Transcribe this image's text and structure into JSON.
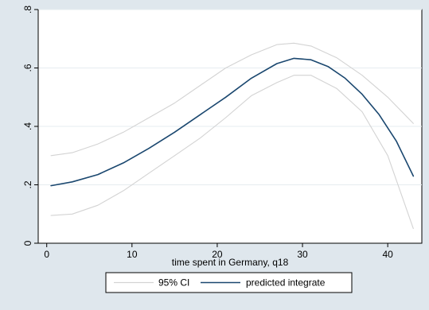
{
  "chart_data": {
    "type": "line",
    "title": "",
    "xlabel": "time spent in Germany, q18",
    "ylabel": "",
    "xlim": [
      -1,
      44
    ],
    "ylim": [
      0,
      0.8
    ],
    "grid": true,
    "legend_placement": "bottom",
    "xticks": [
      0,
      10,
      20,
      30,
      40
    ],
    "yticks": [
      0,
      0.2,
      0.4,
      0.6,
      0.8
    ],
    "xtick_labels": [
      "0",
      "10",
      "20",
      "30",
      "40"
    ],
    "ytick_labels": [
      "0",
      ".2",
      ".4",
      ".6",
      ".8"
    ],
    "series": [
      {
        "name": "95% CI",
        "role": "ci_upper",
        "color": "#d3d3d3",
        "x": [
          0.5,
          3,
          6,
          9,
          12,
          15,
          18,
          21,
          24,
          27,
          29,
          31,
          34,
          37,
          40,
          43
        ],
        "y": [
          0.3,
          0.31,
          0.34,
          0.38,
          0.43,
          0.48,
          0.54,
          0.6,
          0.645,
          0.68,
          0.685,
          0.675,
          0.635,
          0.575,
          0.5,
          0.41
        ]
      },
      {
        "name": "",
        "role": "ci_lower",
        "color": "#d3d3d3",
        "x": [
          0.5,
          3,
          6,
          9,
          12,
          15,
          18,
          21,
          24,
          27,
          29,
          31,
          34,
          37,
          40,
          43
        ],
        "y": [
          0.095,
          0.1,
          0.13,
          0.18,
          0.24,
          0.3,
          0.36,
          0.43,
          0.505,
          0.55,
          0.575,
          0.575,
          0.53,
          0.45,
          0.3,
          0.05
        ]
      },
      {
        "name": "predicted integrate",
        "role": "fit",
        "color": "#1a476f",
        "x": [
          0.5,
          3,
          6,
          9,
          12,
          15,
          18,
          21,
          24,
          27,
          29,
          31,
          33,
          35,
          37,
          39,
          41,
          43
        ],
        "y": [
          0.197,
          0.21,
          0.235,
          0.275,
          0.325,
          0.38,
          0.44,
          0.5,
          0.565,
          0.615,
          0.633,
          0.628,
          0.605,
          0.565,
          0.51,
          0.44,
          0.35,
          0.23
        ]
      }
    ],
    "legend": [
      {
        "label": "95% CI",
        "color": "#d3d3d3"
      },
      {
        "label": "predicted integrate",
        "color": "#1a476f"
      }
    ]
  }
}
